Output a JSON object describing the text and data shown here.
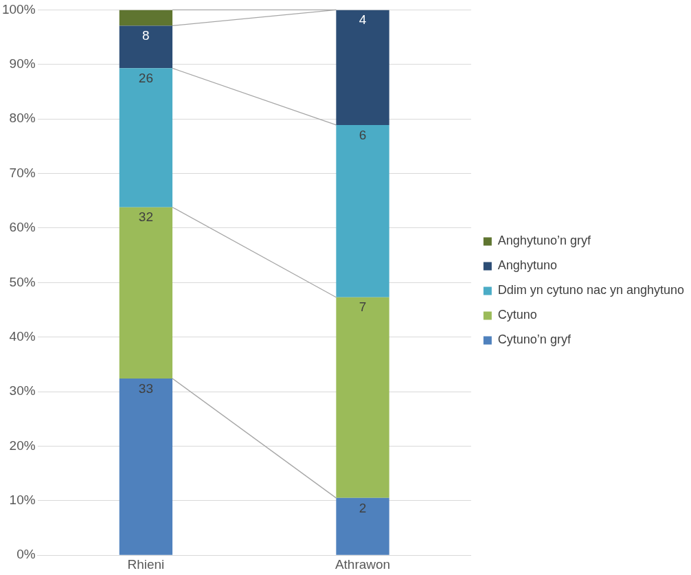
{
  "chart_data": {
    "type": "bar",
    "stacked": true,
    "categories": [
      "Rhieni",
      "Athrawon"
    ],
    "series": [
      {
        "name": "Cytuno’n gryf",
        "color": "#4f81bd",
        "values": [
          32.4,
          10.5
        ]
      },
      {
        "name": "Cytuno",
        "color": "#9bbb59",
        "values": [
          31.4,
          36.8
        ]
      },
      {
        "name": "Ddim yn cytuno nac yn anghytuno",
        "color": "#4bacc6",
        "values": [
          25.5,
          31.6
        ]
      },
      {
        "name": "Anghytuno",
        "color": "#2c4d75",
        "values": [
          7.8,
          21.1
        ]
      },
      {
        "name": "Anghytuno’n gryf",
        "color": "#5f7530",
        "values": [
          2.9,
          0
        ]
      }
    ],
    "annotations": [
      {
        "text": "33",
        "x": "Rhieni",
        "y": 32.4
      },
      {
        "text": "32",
        "x": "Rhieni",
        "y": 63.8
      },
      {
        "text": "26",
        "x": "Rhieni",
        "y": 89.3
      },
      {
        "text": "8",
        "x": "Rhieni",
        "y": 97.1
      },
      {
        "text": "2",
        "x": "Athrawon",
        "y": 10.5
      },
      {
        "text": "7",
        "x": "Athrawon",
        "y": 47.3
      },
      {
        "text": "6",
        "x": "Athrawon",
        "y": 78.9
      },
      {
        "text": "4",
        "x": "Athrawon",
        "y": 100
      }
    ],
    "ylim": [
      0,
      100
    ],
    "yticks": [
      {
        "value": 0,
        "label": "0%"
      },
      {
        "value": 10,
        "label": "10%"
      },
      {
        "value": 20,
        "label": "20%"
      },
      {
        "value": 30,
        "label": "30%"
      },
      {
        "value": 40,
        "label": "40%"
      },
      {
        "value": 50,
        "label": "50%"
      },
      {
        "value": 60,
        "label": "60%"
      },
      {
        "value": 70,
        "label": "70%"
      },
      {
        "value": 80,
        "label": "80%"
      },
      {
        "value": 90,
        "label": "90%"
      },
      {
        "value": 100,
        "label": "100%"
      }
    ],
    "grid": "y",
    "legend": "right"
  }
}
